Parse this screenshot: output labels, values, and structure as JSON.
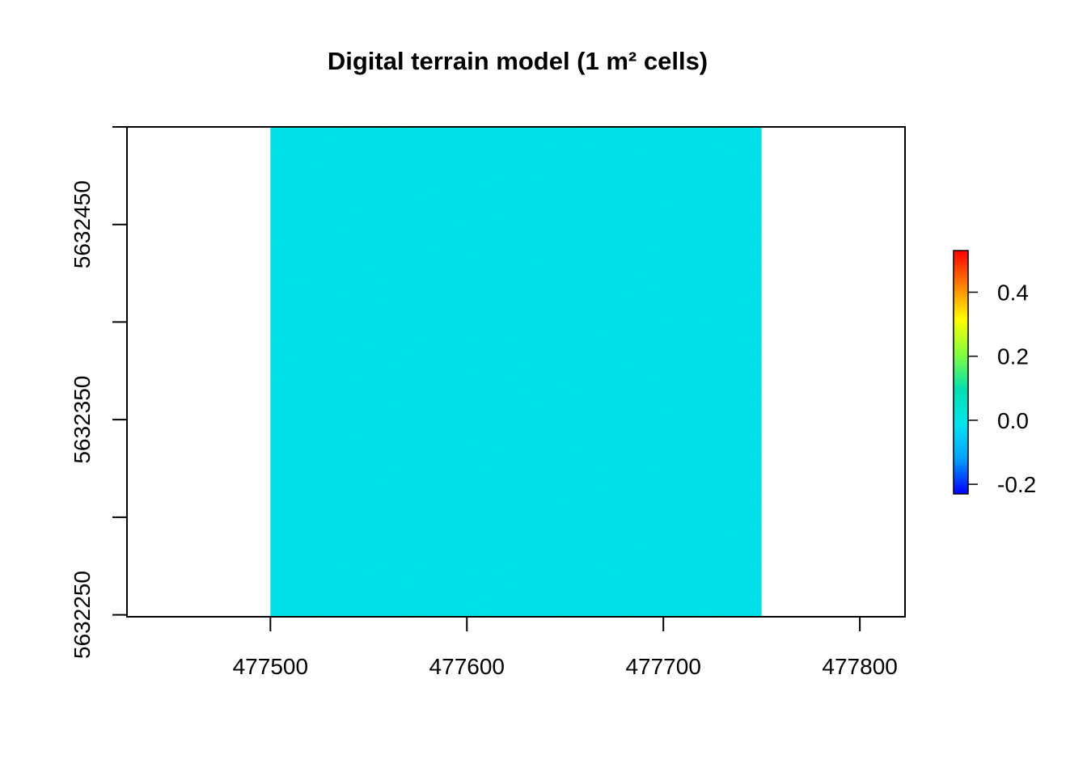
{
  "chart_data": {
    "type": "heatmap",
    "title": "Digital terrain model (1 m² cells)",
    "xlabel": "",
    "ylabel": "",
    "x_ticks": [
      477500,
      477600,
      477700,
      477800
    ],
    "y_ticks": [
      5632250,
      5632350,
      5632450
    ],
    "y_minor_ticks": [
      5632300,
      5632400,
      5632500
    ],
    "xlim": [
      477427,
      477823
    ],
    "ylim": [
      5632249,
      5632500
    ],
    "raster_extent": {
      "xmin": 477500,
      "xmax": 477750,
      "ymin": 5632249,
      "ymax": 5632500
    },
    "colorbar": {
      "colors": [
        "#0000ff",
        "#00a0ff",
        "#00e4ee",
        "#00e0b0",
        "#80ff40",
        "#ffff00",
        "#ff8000",
        "#ff0000"
      ],
      "min": -0.23,
      "max": 0.53,
      "ticks": [
        -0.2,
        0.0,
        0.2,
        0.4
      ],
      "tick_labels": [
        "-0.2",
        "0.0",
        "0.2",
        "0.4"
      ]
    },
    "dominant_value": 0.0,
    "grid": false,
    "legend": "right"
  }
}
